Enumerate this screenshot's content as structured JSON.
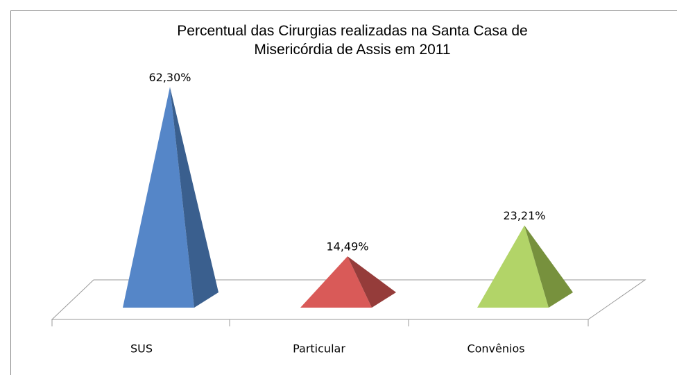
{
  "chart_data": {
    "type": "pyramid",
    "title": "Percentual  das Cirurgias realizadas na Santa Casa de Misericórdia de Assis em 2011",
    "categories": [
      "SUS",
      "Particular",
      "Convênios"
    ],
    "values": [
      62.3,
      14.49,
      23.21
    ],
    "value_labels": [
      "62,30%",
      "14,49%",
      "23,21%"
    ],
    "colors": [
      "#5586c8",
      "#d95a58",
      "#b2d468"
    ],
    "shade_colors": [
      "#3a5f8e",
      "#953c3a",
      "#77913d"
    ]
  }
}
